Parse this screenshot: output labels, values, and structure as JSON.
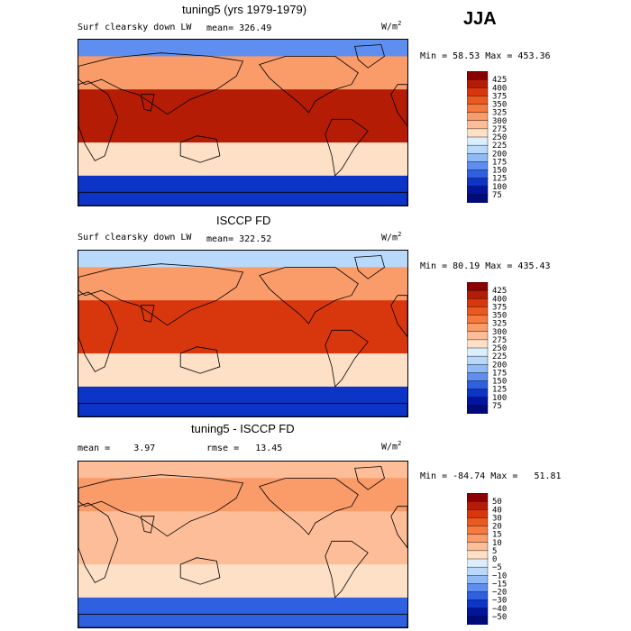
{
  "page": {
    "season": "JJA"
  },
  "chart_data": [
    {
      "type": "heatmap",
      "title": "tuning5 (yrs 1979-1979)",
      "field_label": "Surf clearsky down LW",
      "mean_label": "mean=",
      "mean": "326.49",
      "units": "W/m",
      "units_sup": "2",
      "min_label": "Min =",
      "min": "58.53",
      "max_label": "Max =",
      "max": "453.36",
      "colorbar_levels": [
        "425",
        "400",
        "375",
        "350",
        "325",
        "300",
        "275",
        "250",
        "225",
        "200",
        "175",
        "150",
        "125",
        "100",
        "75"
      ],
      "colorbar_colors": [
        "#8b0000",
        "#b51c06",
        "#d8370e",
        "#ea5a1e",
        "#f47a40",
        "#fa9b6a",
        "#fcbd98",
        "#fde0c6",
        "#dceefb",
        "#b9d9fa",
        "#8fbaf5",
        "#5e8ff0",
        "#2e60e0",
        "#0c34c7",
        "#00149e",
        "#000a78"
      ],
      "regions": {
        "far_north": 150,
        "north_mid": 300,
        "tropics": 400,
        "south_mid": 260,
        "antarctic": 100
      }
    },
    {
      "type": "heatmap",
      "title": "ISCCP FD",
      "field_label": "Surf clearsky down LW",
      "mean_label": "mean=",
      "mean": "322.52",
      "units": "W/m",
      "units_sup": "2",
      "min_label": "Min =",
      "min": "80.19",
      "max_label": "Max =",
      "max": "435.43",
      "colorbar_levels": [
        "425",
        "400",
        "375",
        "350",
        "325",
        "300",
        "275",
        "250",
        "225",
        "200",
        "175",
        "150",
        "125",
        "100",
        "75"
      ],
      "colorbar_colors": [
        "#8b0000",
        "#b51c06",
        "#d8370e",
        "#ea5a1e",
        "#f47a40",
        "#fa9b6a",
        "#fcbd98",
        "#fde0c6",
        "#dceefb",
        "#b9d9fa",
        "#8fbaf5",
        "#5e8ff0",
        "#2e60e0",
        "#0c34c7",
        "#00149e",
        "#000a78"
      ],
      "regions": {
        "far_north": 200,
        "north_mid": 310,
        "tropics": 390,
        "south_mid": 270,
        "antarctic": 110
      }
    },
    {
      "type": "heatmap",
      "title": "tuning5 - ISCCP FD",
      "mean_label": "mean =",
      "mean": "3.97",
      "rmse_label": "rmse =",
      "rmse": "13.45",
      "units": "W/m",
      "units_sup": "2",
      "min_label": "Min =",
      "min": "-84.74",
      "max_label": "Max =",
      "max": "51.81",
      "colorbar_levels": [
        "50",
        "40",
        "30",
        "20",
        "15",
        "10",
        "5",
        "0",
        "−5",
        "−10",
        "−15",
        "−20",
        "−30",
        "−40",
        "−50"
      ],
      "colorbar_colors": [
        "#8b0000",
        "#b51c06",
        "#d8370e",
        "#ea5a1e",
        "#f47a40",
        "#fa9b6a",
        "#fcbd98",
        "#fde0c6",
        "#dceefb",
        "#b9d9fa",
        "#8fbaf5",
        "#5e8ff0",
        "#2e60e0",
        "#0c34c7",
        "#00149e",
        "#000a78"
      ],
      "regions": {
        "far_north": 5,
        "north_mid": 10,
        "tropics": 5,
        "south_mid": 0,
        "antarctic": -30
      }
    }
  ]
}
